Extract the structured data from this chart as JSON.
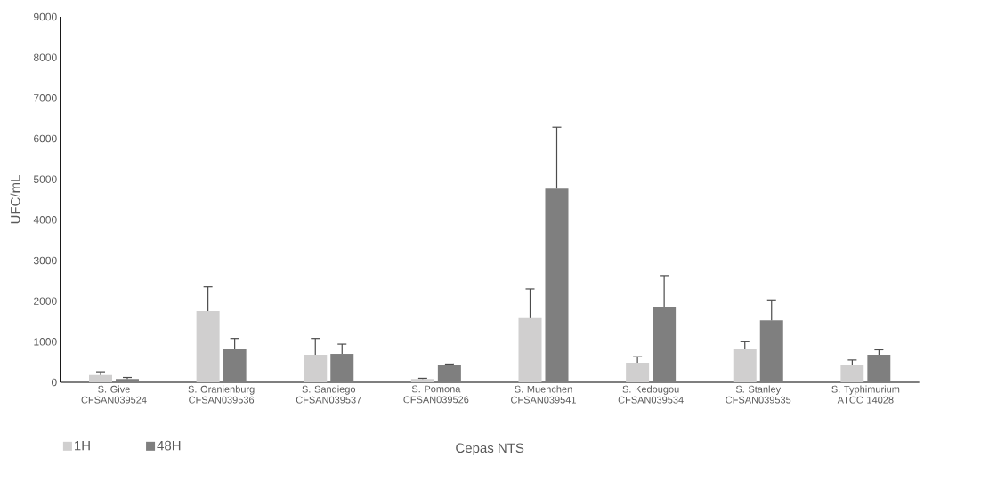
{
  "chart_data": {
    "type": "bar",
    "xlabel": "Cepas NTS",
    "ylabel": "UFC/mL",
    "categories": [
      "S. Give CFSAN039524",
      "S. Oranienburg CFSAN039536",
      "S. Sandiego CFSAN039537",
      "S. Pomona CFSAN039526",
      "S. Muenchen CFSAN039541",
      "S. Kedougou CFSAN039534",
      "S. Stanley CFSAN039535",
      "S. Typhimurium ATCC 14028"
    ],
    "series": [
      {
        "name": "1H",
        "color": "#d0cfcf",
        "values": [
          180,
          1750,
          680,
          80,
          1580,
          480,
          810,
          420
        ],
        "errors": [
          [
            180,
            260
          ],
          [
            1750,
            2350
          ],
          [
            680,
            1080
          ],
          [
            80,
            100
          ],
          [
            1580,
            2300
          ],
          [
            480,
            630
          ],
          [
            810,
            1000
          ],
          [
            420,
            550
          ]
        ]
      },
      {
        "name": "48H",
        "color": "#7f7f7f",
        "values": [
          80,
          830,
          700,
          420,
          4770,
          1860,
          1530,
          680
        ],
        "errors": [
          [
            80,
            120
          ],
          [
            830,
            1080
          ],
          [
            700,
            940
          ],
          [
            420,
            450
          ],
          [
            4770,
            6280
          ],
          [
            1860,
            2630
          ],
          [
            1530,
            2030
          ],
          [
            680,
            800
          ]
        ]
      }
    ],
    "ylim": [
      0,
      9000
    ],
    "yticks": [
      0,
      1000,
      2000,
      3000,
      4000,
      5000,
      6000,
      7000,
      8000,
      9000
    ],
    "grid": false,
    "legend": "bottom left"
  }
}
